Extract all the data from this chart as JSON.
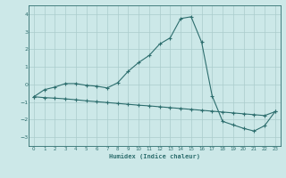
{
  "xlabel": "Humidex (Indice chaleur)",
  "ylabel": "",
  "background_color": "#cce8e8",
  "line_color": "#2d6e6e",
  "grid_color": "#aacccc",
  "xlim": [
    -0.5,
    23.5
  ],
  "ylim": [
    -3.5,
    4.5
  ],
  "yticks": [
    -3,
    -2,
    -1,
    0,
    1,
    2,
    3,
    4
  ],
  "xticks": [
    0,
    1,
    2,
    3,
    4,
    5,
    6,
    7,
    8,
    9,
    10,
    11,
    12,
    13,
    14,
    15,
    16,
    17,
    18,
    19,
    20,
    21,
    22,
    23
  ],
  "curve1_x": [
    0,
    1,
    2,
    3,
    4,
    5,
    6,
    7,
    8,
    9,
    10,
    11,
    12,
    13,
    14,
    15,
    16,
    17,
    18,
    19,
    20,
    21,
    22,
    23
  ],
  "curve1_y": [
    -0.7,
    -0.3,
    -0.15,
    0.05,
    0.05,
    -0.05,
    -0.1,
    -0.2,
    0.1,
    0.75,
    1.25,
    1.65,
    2.3,
    2.65,
    3.75,
    3.85,
    2.4,
    -0.65,
    -2.1,
    -2.3,
    -2.5,
    -2.65,
    -2.35,
    -1.55
  ],
  "curve2_x": [
    0,
    1,
    2,
    3,
    4,
    5,
    6,
    7,
    8,
    9,
    10,
    11,
    12,
    13,
    14,
    15,
    16,
    17,
    18,
    19,
    20,
    21,
    22,
    23
  ],
  "curve2_y": [
    -0.7,
    -0.75,
    -0.78,
    -0.82,
    -0.87,
    -0.93,
    -0.98,
    -1.03,
    -1.08,
    -1.13,
    -1.18,
    -1.22,
    -1.27,
    -1.32,
    -1.37,
    -1.42,
    -1.47,
    -1.52,
    -1.57,
    -1.62,
    -1.67,
    -1.72,
    -1.77,
    -1.55
  ],
  "figsize": [
    3.2,
    2.0
  ],
  "dpi": 100
}
